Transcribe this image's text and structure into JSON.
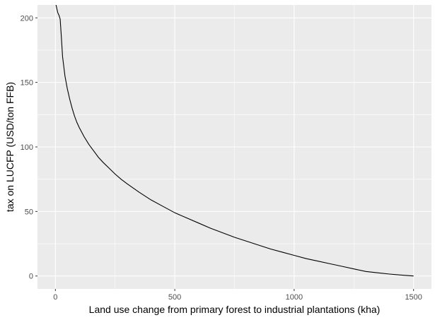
{
  "chart_data": {
    "type": "line",
    "title": "",
    "xlabel": "Land use change from primary forest to industrial plantations (kha)",
    "ylabel": "tax on LUCFP (USD/ton FFB)",
    "xlim": [
      -75,
      1575
    ],
    "ylim": [
      -10,
      210
    ],
    "x_ticks": [
      0,
      500,
      1000,
      1500
    ],
    "y_ticks": [
      0,
      50,
      100,
      150,
      200
    ],
    "x_tick_labels": [
      "0",
      "500",
      "1000",
      "1500"
    ],
    "y_tick_labels": [
      "0",
      "50",
      "100",
      "150",
      "200"
    ],
    "grid": true,
    "legend": "none",
    "colors": {
      "panel": "#ebebeb",
      "grid": "#ffffff",
      "line": "#000000"
    },
    "series": [
      {
        "x": [
          0,
          5,
          10,
          15,
          20,
          25,
          30,
          40,
          50,
          60,
          70,
          80,
          90,
          100,
          120,
          140,
          160,
          180,
          200,
          225,
          250,
          275,
          300,
          350,
          400,
          450,
          500,
          550,
          600,
          650,
          700,
          750,
          800,
          850,
          900,
          950,
          1000,
          1050,
          1100,
          1150,
          1200,
          1250,
          1300,
          1350,
          1400,
          1450,
          1500
        ],
        "values": [
          212,
          208,
          204,
          202,
          199,
          185,
          170,
          155,
          145,
          137,
          130,
          124,
          119,
          115,
          108,
          102,
          97,
          92,
          88,
          83.5,
          79,
          75,
          71.5,
          65,
          59,
          54,
          49,
          45,
          41,
          37,
          33.5,
          30,
          27,
          24,
          21,
          18.5,
          16,
          13.5,
          11.5,
          9.5,
          7.5,
          5.5,
          3.5,
          2.5,
          1.5,
          0.7,
          0
        ]
      }
    ]
  }
}
